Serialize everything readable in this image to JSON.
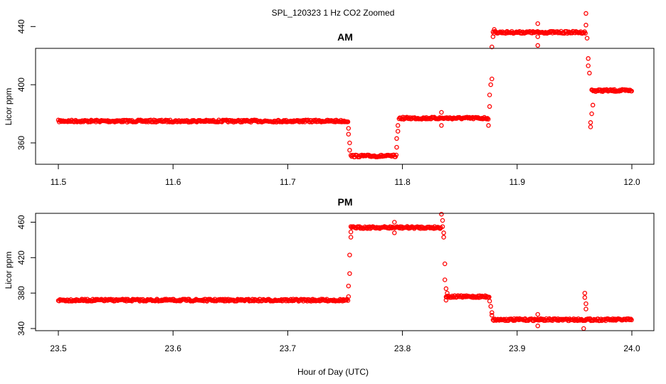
{
  "figure": {
    "title": "SPL_120323  1 Hz CO2 Zoomed",
    "xlabel": "Hour of Day (UTC)",
    "point_color": "#ff0000"
  },
  "chart_data": [
    {
      "type": "scatter",
      "title": "AM",
      "xlabel": "",
      "ylabel": "Licor ppm",
      "xlim": [
        11.5,
        12.0
      ],
      "ylim": [
        348,
        425
      ],
      "xticks": [
        "11.5",
        "11.6",
        "11.7",
        "11.8",
        "11.9",
        "12.0"
      ],
      "yticks": [
        "360",
        "400",
        "440"
      ],
      "segments": [
        {
          "x": [
            11.5,
            11.753
          ],
          "y": 375
        },
        {
          "x": [
            11.755,
            11.795
          ],
          "y": 351
        },
        {
          "x": [
            11.797,
            11.875
          ],
          "y": 377
        },
        {
          "x": [
            11.879,
            11.96
          ],
          "y": 436
        },
        {
          "x": [
            11.965,
            12.0
          ],
          "y": 396
        }
      ],
      "transition_points": [
        [
          11.753,
          370
        ],
        [
          11.753,
          366
        ],
        [
          11.754,
          360
        ],
        [
          11.754,
          355
        ],
        [
          11.795,
          357
        ],
        [
          11.795,
          363
        ],
        [
          11.796,
          368
        ],
        [
          11.796,
          372
        ],
        [
          11.834,
          372
        ],
        [
          11.834,
          381
        ],
        [
          11.875,
          372
        ],
        [
          11.876,
          385
        ],
        [
          11.876,
          393
        ],
        [
          11.877,
          400
        ],
        [
          11.878,
          426
        ],
        [
          11.878,
          404
        ],
        [
          11.879,
          433
        ],
        [
          11.88,
          438
        ],
        [
          11.918,
          427
        ],
        [
          11.918,
          442
        ],
        [
          11.918,
          433
        ],
        [
          11.96,
          449
        ],
        [
          11.96,
          441
        ],
        [
          11.961,
          432
        ],
        [
          11.962,
          418
        ],
        [
          11.962,
          413
        ],
        [
          11.963,
          408
        ],
        [
          11.964,
          374
        ],
        [
          11.964,
          371
        ],
        [
          11.965,
          380
        ],
        [
          11.966,
          386
        ]
      ]
    },
    {
      "type": "scatter",
      "title": "PM",
      "xlabel": "",
      "ylabel": "Licor ppm",
      "xlim": [
        23.5,
        24.0
      ],
      "ylim": [
        340,
        470
      ],
      "xticks": [
        "23.5",
        "23.6",
        "23.7",
        "23.8",
        "23.9",
        "24.0"
      ],
      "yticks": [
        "340",
        "380",
        "420",
        "460"
      ],
      "segments": [
        {
          "x": [
            23.5,
            23.753
          ],
          "y": 372
        },
        {
          "x": [
            23.755,
            23.834
          ],
          "y": 454
        },
        {
          "x": [
            23.838,
            23.876
          ],
          "y": 376
        },
        {
          "x": [
            23.879,
            24.0
          ],
          "y": 350
        }
      ],
      "transition_points": [
        [
          23.753,
          376
        ],
        [
          23.753,
          388
        ],
        [
          23.754,
          402
        ],
        [
          23.754,
          423
        ],
        [
          23.755,
          443
        ],
        [
          23.755,
          449
        ],
        [
          23.793,
          448
        ],
        [
          23.793,
          460
        ],
        [
          23.834,
          469
        ],
        [
          23.835,
          462
        ],
        [
          23.835,
          455
        ],
        [
          23.836,
          448
        ],
        [
          23.836,
          443
        ],
        [
          23.837,
          413
        ],
        [
          23.837,
          395
        ],
        [
          23.838,
          385
        ],
        [
          23.838,
          372
        ],
        [
          23.839,
          380
        ],
        [
          23.876,
          371
        ],
        [
          23.877,
          365
        ],
        [
          23.878,
          358
        ],
        [
          23.878,
          355
        ],
        [
          23.918,
          343
        ],
        [
          23.918,
          356
        ],
        [
          23.959,
          380
        ],
        [
          23.959,
          375
        ],
        [
          23.96,
          368
        ],
        [
          23.96,
          362
        ],
        [
          23.958,
          340
        ]
      ]
    }
  ]
}
